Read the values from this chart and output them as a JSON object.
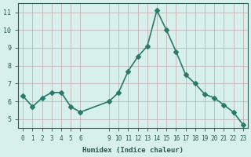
{
  "x": [
    0,
    1,
    2,
    3,
    4,
    5,
    6,
    9,
    10,
    11,
    12,
    13,
    14,
    15,
    16,
    17,
    18,
    19,
    20,
    21,
    22,
    23
  ],
  "y": [
    6.3,
    5.7,
    6.2,
    6.5,
    6.5,
    5.7,
    5.4,
    6.0,
    6.5,
    7.7,
    8.5,
    9.1,
    11.1,
    10.0,
    8.8,
    7.5,
    7.0,
    6.4,
    6.2,
    5.8,
    5.4,
    4.7
  ],
  "line_color": "#2a7a6a",
  "marker": "D",
  "marker_size": 3,
  "line_width": 1.2,
  "xlabel": "Humidex (Indice chaleur)",
  "xlim": [
    -0.5,
    23.5
  ],
  "ylim": [
    4.5,
    11.5
  ],
  "yticks": [
    5,
    6,
    7,
    8,
    9,
    10,
    11
  ],
  "xtick_positions": [
    0,
    1,
    2,
    3,
    4,
    5,
    6,
    9,
    10,
    11,
    12,
    13,
    14,
    15,
    16,
    17,
    18,
    19,
    20,
    21,
    22,
    23
  ],
  "xtick_labels": [
    "0",
    "1",
    "2",
    "3",
    "4",
    "5",
    "6",
    "9",
    "10",
    "11",
    "12",
    "13",
    "14",
    "15",
    "16",
    "17",
    "18",
    "19",
    "20",
    "21",
    "22",
    "23"
  ],
  "background_color": "#d8f0ec",
  "grid_color": "#c0a8a8",
  "tick_color": "#2a5a50",
  "label_color": "#2a5a50",
  "font_family": "monospace"
}
